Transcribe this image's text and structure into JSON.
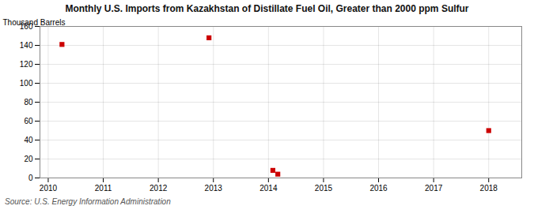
{
  "chart_data": {
    "type": "scatter",
    "title": "Monthly U.S. Imports from Kazakhstan of Distillate Fuel Oil, Greater than 2000 ppm Sulfur",
    "y_label": "Thousand Barrels",
    "annotations": [
      "Source: U.S. Energy Information Administration"
    ],
    "x": [
      2010.25,
      2012.92,
      2014.08,
      2014.17,
      2018.0
    ],
    "values": [
      141,
      148,
      8,
      4,
      50
    ],
    "color": "#cc0000",
    "marker": "square",
    "xlim": [
      2009.85,
      2018.6
    ],
    "xticks": [
      2010,
      2011,
      2012,
      2013,
      2014,
      2015,
      2016,
      2017,
      2018
    ],
    "ylim": [
      0,
      160
    ],
    "yticks": [
      0,
      20,
      40,
      60,
      80,
      100,
      120,
      140,
      160
    ],
    "grid": true
  }
}
